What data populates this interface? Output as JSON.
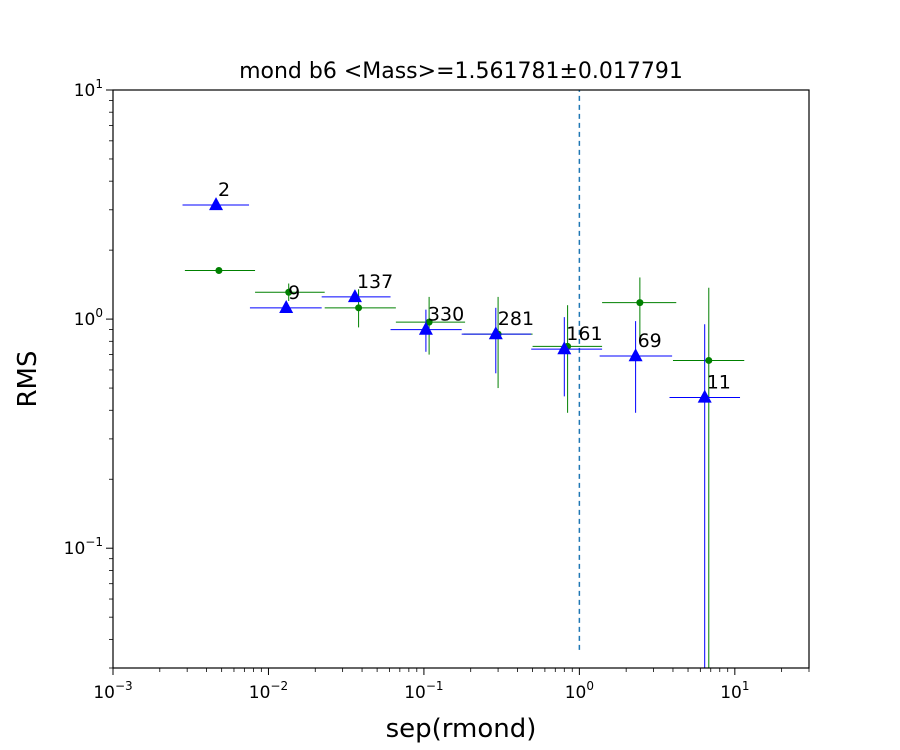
{
  "chart_data": {
    "type": "scatter",
    "title": "mond b6 <Mass>=1.561781±0.017791",
    "xlabel": "sep(rmond)",
    "ylabel": "RMS",
    "xscale": "log",
    "yscale": "log",
    "xlim": [
      0.001,
      30
    ],
    "ylim": [
      0.03,
      10
    ],
    "x_ticks": [
      {
        "value": 0.001,
        "base": "10",
        "exp": "−3"
      },
      {
        "value": 0.01,
        "base": "10",
        "exp": "−2"
      },
      {
        "value": 0.1,
        "base": "10",
        "exp": "−1"
      },
      {
        "value": 1,
        "base": "10",
        "exp": "0"
      },
      {
        "value": 10,
        "base": "10",
        "exp": "1"
      }
    ],
    "y_ticks": [
      {
        "value": 0.1,
        "base": "10",
        "exp": "−1"
      },
      {
        "value": 1,
        "base": "10",
        "exp": "0"
      },
      {
        "value": 10,
        "base": "10",
        "exp": "1"
      }
    ],
    "vline": {
      "x": 1,
      "y_range": [
        0.036,
        10
      ],
      "color": "#1f77b4"
    },
    "series": [
      {
        "marker": "triangle",
        "color": "#0000ff",
        "points": [
          {
            "x": 0.0046,
            "y": 3.15,
            "xerr": [
              0.0028,
              0.0075
            ],
            "yerr": [
              3.15,
              3.15
            ],
            "label": "2"
          },
          {
            "x": 0.013,
            "y": 1.12,
            "xerr": [
              0.0076,
              0.022
            ],
            "yerr": [
              1.12,
              1.12
            ],
            "label": "9"
          },
          {
            "x": 0.036,
            "y": 1.25,
            "xerr": [
              0.022,
              0.061
            ],
            "yerr": [
              1.25,
              1.25
            ],
            "label": "137"
          },
          {
            "x": 0.103,
            "y": 0.9,
            "xerr": [
              0.061,
              0.175
            ],
            "yerr": [
              0.72,
              1.1
            ],
            "label": "330"
          },
          {
            "x": 0.29,
            "y": 0.86,
            "xerr": [
              0.175,
              0.49
            ],
            "yerr": [
              0.58,
              1.12
            ],
            "label": "281"
          },
          {
            "x": 0.8,
            "y": 0.74,
            "xerr": [
              0.49,
              1.4
            ],
            "yerr": [
              0.46,
              1.02
            ],
            "label": "161"
          },
          {
            "x": 2.3,
            "y": 0.69,
            "xerr": [
              1.35,
              3.95
            ],
            "yerr": [
              0.39,
              0.98
            ],
            "label": "69"
          },
          {
            "x": 6.4,
            "y": 0.455,
            "xerr": [
              3.8,
              10.8
            ],
            "yerr": [
              0.03,
              0.95
            ],
            "label": "11"
          }
        ]
      },
      {
        "marker": "circle",
        "color": "#008000",
        "points": [
          {
            "x": 0.0048,
            "y": 1.63,
            "xerr": [
              0.0029,
              0.0082
            ],
            "yerr": [
              1.63,
              1.63
            ]
          },
          {
            "x": 0.0135,
            "y": 1.31,
            "xerr": [
              0.0082,
              0.023
            ],
            "yerr": [
              1.2,
              1.43
            ]
          },
          {
            "x": 0.038,
            "y": 1.12,
            "xerr": [
              0.023,
              0.066
            ],
            "yerr": [
              0.92,
              1.35
            ]
          },
          {
            "x": 0.108,
            "y": 0.97,
            "xerr": [
              0.066,
              0.184
            ],
            "yerr": [
              0.7,
              1.25
            ]
          },
          {
            "x": 0.3,
            "y": 0.86,
            "xerr": [
              0.18,
              0.5
            ],
            "yerr": [
              0.5,
              1.25
            ]
          },
          {
            "x": 0.84,
            "y": 0.76,
            "xerr": [
              0.5,
              1.4
            ],
            "yerr": [
              0.39,
              1.15
            ]
          },
          {
            "x": 2.45,
            "y": 1.18,
            "xerr": [
              1.4,
              4.2
            ],
            "yerr": [
              0.82,
              1.52
            ]
          },
          {
            "x": 6.8,
            "y": 0.66,
            "xerr": [
              4.0,
              11.5
            ],
            "yerr": [
              0.03,
              1.37
            ]
          }
        ]
      }
    ]
  }
}
